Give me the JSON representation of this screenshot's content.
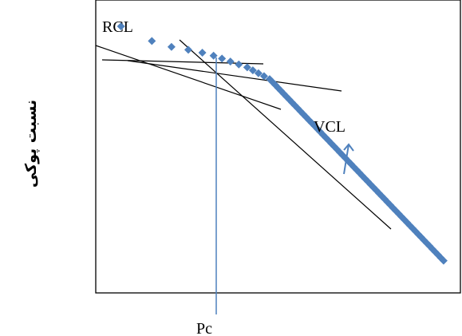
{
  "chart_data": {
    "type": "scatter",
    "ylabel": "نسبت پوکی",
    "xlabel": "",
    "grid": false,
    "annotations": {
      "rcl": "RCL",
      "vcl": "VCL",
      "pc": "Pc"
    },
    "colors": {
      "points": "#4f81bd",
      "pc_line": "#4f81bd",
      "arrow": "#4f81bd",
      "axes": "#000000",
      "tangents": "#000000"
    },
    "series": [
      {
        "marker": "diamond",
        "points": [
          [
            0.09,
            0.91
          ],
          [
            0.2,
            0.86
          ],
          [
            0.27,
            0.84
          ],
          [
            0.33,
            0.83
          ],
          [
            0.38,
            0.82
          ],
          [
            0.42,
            0.81
          ],
          [
            0.45,
            0.8
          ],
          [
            0.48,
            0.79
          ],
          [
            0.51,
            0.78
          ],
          [
            0.54,
            0.77
          ],
          [
            0.56,
            0.76
          ],
          [
            0.58,
            0.75
          ],
          [
            0.6,
            0.74
          ],
          [
            0.62,
            0.73
          ],
          [
            0.63,
            0.72
          ],
          [
            0.64,
            0.71
          ],
          [
            0.65,
            0.7
          ],
          [
            0.66,
            0.69
          ],
          [
            0.67,
            0.68
          ],
          [
            0.68,
            0.67
          ],
          [
            0.69,
            0.66
          ],
          [
            0.7,
            0.65
          ],
          [
            0.71,
            0.64
          ],
          [
            0.72,
            0.63
          ],
          [
            0.73,
            0.62
          ],
          [
            0.74,
            0.61
          ],
          [
            0.75,
            0.6
          ],
          [
            0.76,
            0.59
          ],
          [
            0.77,
            0.58
          ],
          [
            0.78,
            0.57
          ],
          [
            0.79,
            0.56
          ],
          [
            0.8,
            0.55
          ],
          [
            0.81,
            0.54
          ],
          [
            0.82,
            0.53
          ],
          [
            0.83,
            0.52
          ],
          [
            0.84,
            0.51
          ],
          [
            0.85,
            0.5
          ],
          [
            0.86,
            0.49
          ],
          [
            0.87,
            0.48
          ],
          [
            0.88,
            0.47
          ],
          [
            0.89,
            0.46
          ],
          [
            0.9,
            0.45
          ],
          [
            0.91,
            0.44
          ],
          [
            0.92,
            0.43
          ],
          [
            0.93,
            0.42
          ],
          [
            0.94,
            0.41
          ],
          [
            0.95,
            0.4
          ],
          [
            0.96,
            0.39
          ],
          [
            0.97,
            0.38
          ],
          [
            0.98,
            0.37
          ],
          [
            0.99,
            0.36
          ],
          [
            1.0,
            0.35
          ],
          [
            1.01,
            0.34
          ],
          [
            1.02,
            0.33
          ],
          [
            1.03,
            0.32
          ],
          [
            1.04,
            0.31
          ],
          [
            1.05,
            0.3
          ],
          [
            1.06,
            0.29
          ],
          [
            1.07,
            0.28
          ],
          [
            1.08,
            0.27
          ],
          [
            1.09,
            0.26
          ],
          [
            1.1,
            0.25
          ],
          [
            1.11,
            0.24
          ],
          [
            1.12,
            0.23
          ],
          [
            1.13,
            0.22
          ],
          [
            1.14,
            0.21
          ],
          [
            1.15,
            0.2
          ],
          [
            1.16,
            0.19
          ],
          [
            1.17,
            0.18
          ],
          [
            1.18,
            0.17
          ],
          [
            1.19,
            0.16
          ],
          [
            1.2,
            0.15
          ],
          [
            1.21,
            0.14
          ],
          [
            1.22,
            0.13
          ],
          [
            1.23,
            0.12
          ],
          [
            1.24,
            0.11
          ]
        ]
      }
    ]
  }
}
